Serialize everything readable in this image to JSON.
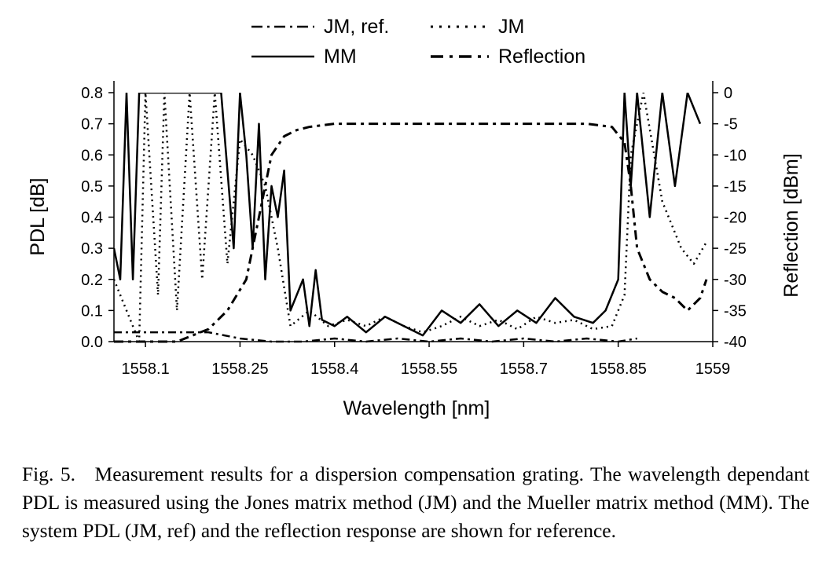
{
  "chart_data": {
    "type": "line",
    "title": "",
    "xlabel": "Wavelength [nm]",
    "ylabel": "PDL [dB]",
    "y2label": "Reflection [dBm]",
    "xlim": [
      1558.05,
      1559.0
    ],
    "ylim": [
      0,
      0.8
    ],
    "y2lim": [
      -40,
      0
    ],
    "xticks": [
      "1558.1",
      "1558.25",
      "1558.4",
      "1558.55",
      "1558.7",
      "1558.85",
      "1559"
    ],
    "yticks": [
      "0.0",
      "0.1",
      "0.2",
      "0.3",
      "0.4",
      "0.5",
      "0.6",
      "0.7",
      "0.8"
    ],
    "y2ticks": [
      "0",
      "-5",
      "-10",
      "-15",
      "-20",
      "-25",
      "-30",
      "-35",
      "-40"
    ],
    "legend_position": "top",
    "series": [
      {
        "name": "JM, ref.",
        "axis": "left",
        "style": "dashdot",
        "x": [
          1558.05,
          1558.15,
          1558.2,
          1558.25,
          1558.3,
          1558.35,
          1558.4,
          1558.45,
          1558.5,
          1558.55,
          1558.6,
          1558.65,
          1558.7,
          1558.75,
          1558.8,
          1558.85,
          1558.88
        ],
        "y": [
          0.03,
          0.03,
          0.03,
          0.01,
          0.0,
          0.0,
          0.01,
          0.0,
          0.01,
          0.0,
          0.01,
          0.0,
          0.01,
          0.0,
          0.01,
          0.0,
          0.01
        ]
      },
      {
        "name": "JM",
        "axis": "left",
        "style": "dotted",
        "x": [
          1558.05,
          1558.07,
          1558.09,
          1558.1,
          1558.12,
          1558.13,
          1558.15,
          1558.17,
          1558.19,
          1558.21,
          1558.23,
          1558.25,
          1558.27,
          1558.29,
          1558.31,
          1558.33,
          1558.36,
          1558.39,
          1558.42,
          1558.45,
          1558.48,
          1558.51,
          1558.54,
          1558.57,
          1558.6,
          1558.63,
          1558.66,
          1558.69,
          1558.72,
          1558.75,
          1558.78,
          1558.81,
          1558.84,
          1558.86,
          1558.87,
          1558.89,
          1558.92,
          1558.95,
          1558.97,
          1558.99
        ],
        "y": [
          0.2,
          0.1,
          0.0,
          0.8,
          0.15,
          0.8,
          0.1,
          0.8,
          0.2,
          0.8,
          0.25,
          0.65,
          0.6,
          0.5,
          0.3,
          0.05,
          0.1,
          0.05,
          0.07,
          0.05,
          0.08,
          0.05,
          0.03,
          0.05,
          0.08,
          0.05,
          0.07,
          0.04,
          0.08,
          0.06,
          0.07,
          0.04,
          0.05,
          0.15,
          0.6,
          0.8,
          0.45,
          0.3,
          0.25,
          0.32
        ]
      },
      {
        "name": "MM",
        "axis": "left",
        "style": "solid",
        "x": [
          1558.05,
          1558.06,
          1558.07,
          1558.08,
          1558.09,
          1558.1,
          1558.11,
          1558.14,
          1558.16,
          1558.18,
          1558.2,
          1558.22,
          1558.24,
          1558.25,
          1558.26,
          1558.27,
          1558.28,
          1558.29,
          1558.3,
          1558.31,
          1558.32,
          1558.33,
          1558.35,
          1558.36,
          1558.37,
          1558.38,
          1558.4,
          1558.42,
          1558.45,
          1558.48,
          1558.51,
          1558.54,
          1558.57,
          1558.6,
          1558.63,
          1558.66,
          1558.69,
          1558.72,
          1558.75,
          1558.78,
          1558.81,
          1558.83,
          1558.85,
          1558.86,
          1558.87,
          1558.88,
          1558.9,
          1558.92,
          1558.94,
          1558.96,
          1558.98
        ],
        "y": [
          0.3,
          0.2,
          0.8,
          0.2,
          0.8,
          0.8,
          0.8,
          0.8,
          0.8,
          0.8,
          0.8,
          0.8,
          0.3,
          0.8,
          0.6,
          0.3,
          0.7,
          0.2,
          0.5,
          0.4,
          0.55,
          0.1,
          0.2,
          0.05,
          0.23,
          0.07,
          0.05,
          0.08,
          0.03,
          0.08,
          0.05,
          0.02,
          0.1,
          0.06,
          0.12,
          0.05,
          0.1,
          0.06,
          0.14,
          0.08,
          0.06,
          0.1,
          0.2,
          0.8,
          0.5,
          0.8,
          0.4,
          0.8,
          0.5,
          0.8,
          0.7
        ]
      },
      {
        "name": "Reflection",
        "axis": "right",
        "style": "dashed",
        "x": [
          1558.05,
          1558.1,
          1558.15,
          1558.2,
          1558.23,
          1558.26,
          1558.28,
          1558.3,
          1558.32,
          1558.34,
          1558.36,
          1558.4,
          1558.5,
          1558.6,
          1558.7,
          1558.8,
          1558.84,
          1558.86,
          1558.87,
          1558.88,
          1558.9,
          1558.92,
          1558.94,
          1558.96,
          1558.98,
          1558.99
        ],
        "y": [
          -40,
          -40,
          -40,
          -38,
          -35,
          -30,
          -20,
          -10,
          -7,
          -6,
          -5.5,
          -5,
          -5,
          -5,
          -5,
          -5,
          -5.5,
          -8,
          -15,
          -25,
          -30,
          -32,
          -33,
          -35,
          -33,
          -30
        ]
      }
    ]
  },
  "caption": {
    "label": "Fig. 5.",
    "text": "Measurement results for a dispersion compensation grating. The wavelength dependant PDL is measured using the Jones matrix method (JM) and the Mueller matrix method (MM). The system PDL (JM, ref) and the reflection response are shown for reference."
  }
}
